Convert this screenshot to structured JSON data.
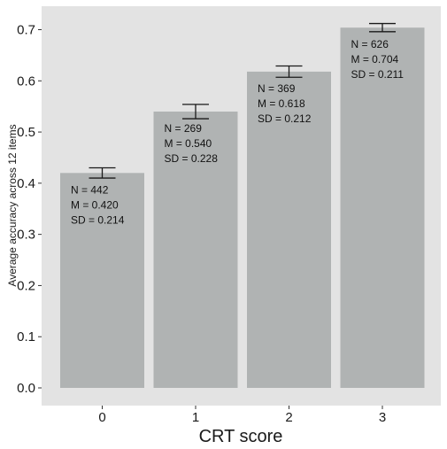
{
  "chart_data": {
    "type": "bar",
    "title": "",
    "xlabel": "CRT score",
    "ylabel": "Average accuracy across 12 items",
    "categories": [
      "0",
      "1",
      "2",
      "3"
    ],
    "values": [
      0.42,
      0.54,
      0.618,
      0.704
    ],
    "error_bars": [
      {
        "low": 0.41,
        "high": 0.43
      },
      {
        "low": 0.526,
        "high": 0.554
      },
      {
        "low": 0.607,
        "high": 0.629
      },
      {
        "low": 0.696,
        "high": 0.712
      }
    ],
    "annotations": [
      {
        "n": "N = 442",
        "m": "M = 0.420",
        "sd": "SD = 0.214"
      },
      {
        "n": "N = 269",
        "m": "M = 0.540",
        "sd": "SD = 0.228"
      },
      {
        "n": "N = 369",
        "m": "M = 0.618",
        "sd": "SD = 0.212"
      },
      {
        "n": "N = 626",
        "m": "M = 0.704",
        "sd": "SD = 0.211"
      }
    ],
    "yticks": [
      "0.0",
      "0.1",
      "0.2",
      "0.3",
      "0.4",
      "0.5",
      "0.6",
      "0.7"
    ],
    "ylim": [
      -0.037,
      0.735
    ],
    "grid": false,
    "colors": {
      "panel": "#e3e3e3",
      "bar": "#b0b3b3",
      "errorbar": "#1a1a1a",
      "axis_text": "#1a1a1a"
    }
  }
}
